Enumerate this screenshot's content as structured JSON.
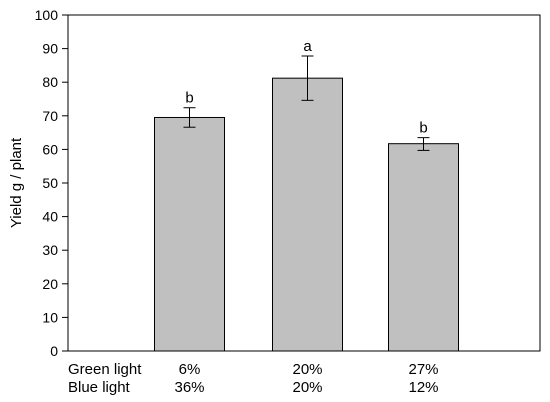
{
  "chart_data": {
    "type": "bar",
    "ylabel": "Yield g / plant",
    "xlabel": "",
    "ylim": [
      0,
      100
    ],
    "yticks": [
      0,
      10,
      20,
      30,
      40,
      50,
      60,
      70,
      80,
      90,
      100
    ],
    "grid": false,
    "bar_color": "#c0c0c0",
    "bars": [
      {
        "green": "6%",
        "blue": "36%",
        "value": 69.5,
        "err_low": 66.6,
        "err_high": 72.4,
        "letter": "b"
      },
      {
        "green": "20%",
        "blue": "20%",
        "value": 81.2,
        "err_low": 74.6,
        "err_high": 87.8,
        "letter": "a"
      },
      {
        "green": "27%",
        "blue": "12%",
        "value": 61.7,
        "err_low": 59.7,
        "err_high": 63.5,
        "letter": "b"
      }
    ],
    "row_labels": {
      "green": "Green light",
      "blue": "Blue light"
    }
  }
}
